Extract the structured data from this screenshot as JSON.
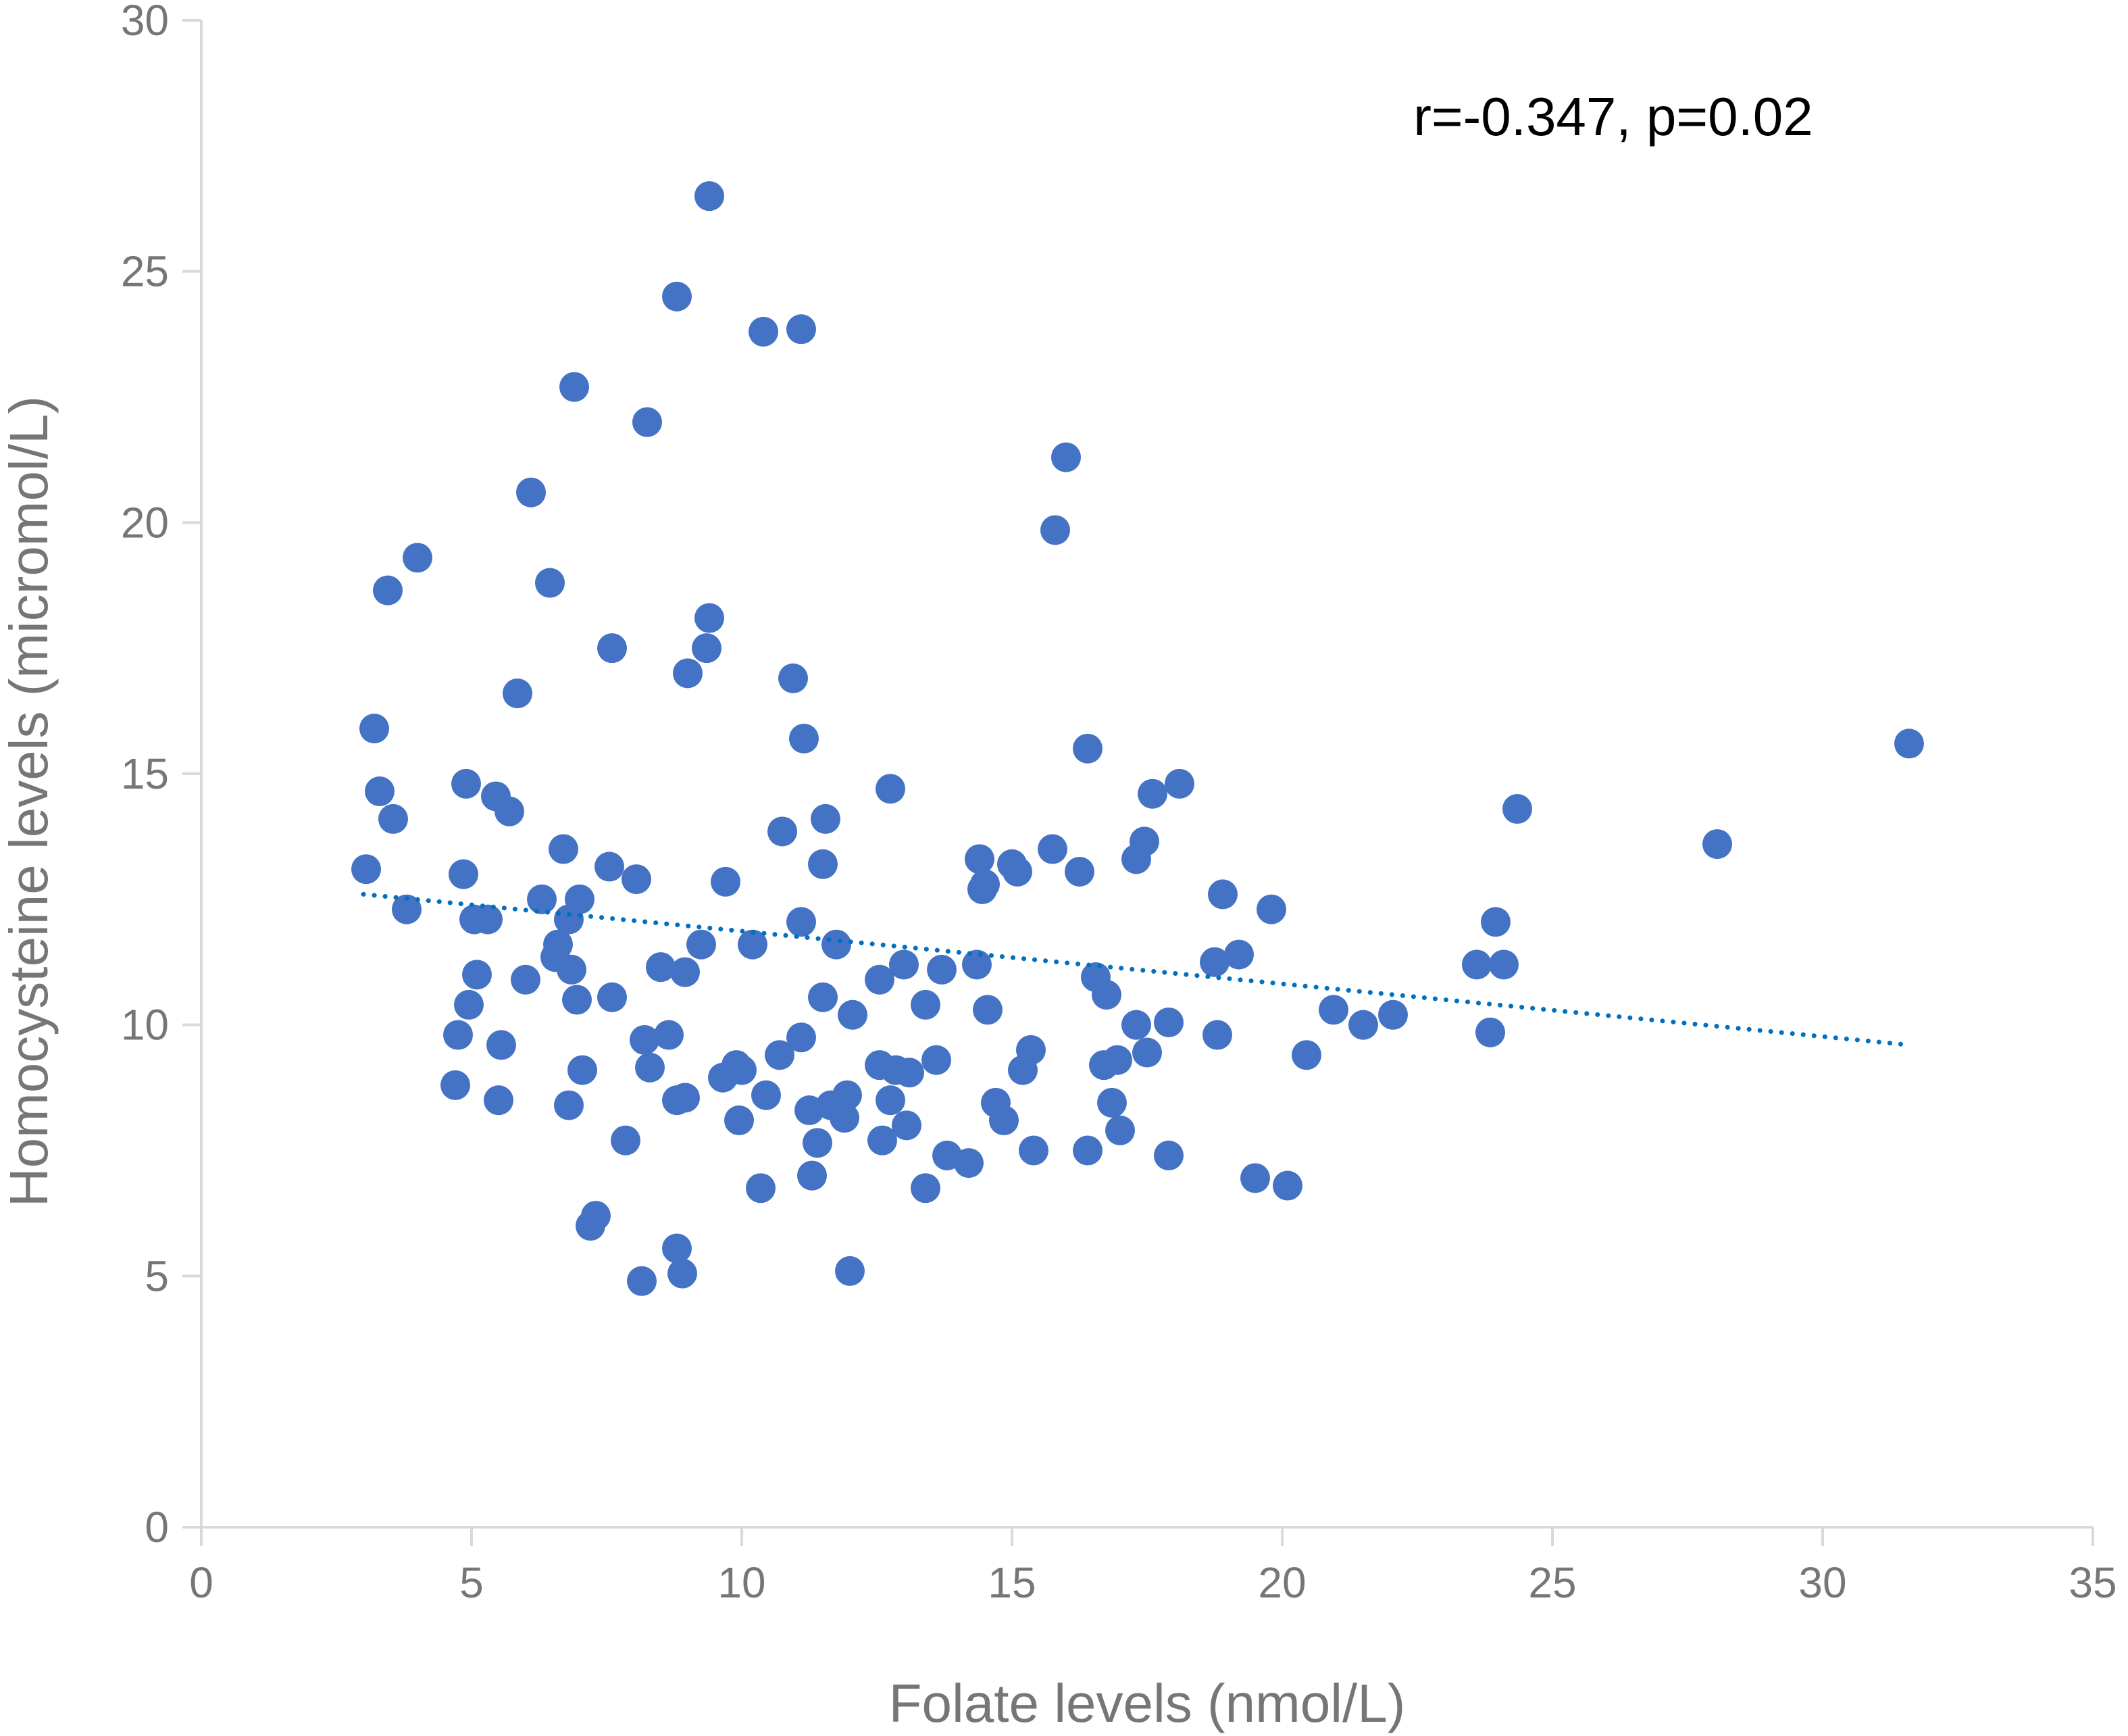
{
  "chart_data": {
    "type": "scatter",
    "xlabel": "Folate levels (nmol/L)",
    "ylabel": "Homocysteine levels (micromol/L)",
    "annotation": "r=-0.347, p=0.02",
    "xlim": [
      0,
      35
    ],
    "ylim": [
      0,
      30
    ],
    "x_ticks": [
      0,
      5,
      10,
      15,
      20,
      25,
      30,
      35
    ],
    "y_ticks": [
      0,
      5,
      10,
      15,
      20,
      25,
      30
    ],
    "grid": false,
    "legend": "none",
    "colors": {
      "points": "#4472C4",
      "trendline": "#0070C0",
      "axis": "#D9D9D9",
      "text": "#767676"
    },
    "trendline": {
      "style": "dotted",
      "x": [
        3.0,
        31.6
      ],
      "y": [
        12.6,
        9.6
      ]
    },
    "points": [
      {
        "x": 3.05,
        "y": 13.1
      },
      {
        "x": 3.2,
        "y": 15.9
      },
      {
        "x": 3.3,
        "y": 14.65
      },
      {
        "x": 3.45,
        "y": 18.65
      },
      {
        "x": 3.55,
        "y": 14.1
      },
      {
        "x": 3.8,
        "y": 12.3
      },
      {
        "x": 4.0,
        "y": 19.3
      },
      {
        "x": 4.7,
        "y": 8.8
      },
      {
        "x": 4.75,
        "y": 9.8
      },
      {
        "x": 4.85,
        "y": 13.0
      },
      {
        "x": 4.9,
        "y": 14.8
      },
      {
        "x": 4.95,
        "y": 10.4
      },
      {
        "x": 5.05,
        "y": 12.1
      },
      {
        "x": 5.1,
        "y": 11.0
      },
      {
        "x": 5.3,
        "y": 12.1
      },
      {
        "x": 5.45,
        "y": 14.55
      },
      {
        "x": 5.5,
        "y": 8.5
      },
      {
        "x": 5.55,
        "y": 9.6
      },
      {
        "x": 5.7,
        "y": 14.25
      },
      {
        "x": 5.85,
        "y": 16.6
      },
      {
        "x": 6.0,
        "y": 10.9
      },
      {
        "x": 6.1,
        "y": 20.6
      },
      {
        "x": 6.3,
        "y": 12.5
      },
      {
        "x": 6.45,
        "y": 18.8
      },
      {
        "x": 6.55,
        "y": 11.35
      },
      {
        "x": 6.6,
        "y": 11.6
      },
      {
        "x": 6.7,
        "y": 13.5
      },
      {
        "x": 6.8,
        "y": 8.4
      },
      {
        "x": 6.8,
        "y": 12.1
      },
      {
        "x": 6.85,
        "y": 11.1
      },
      {
        "x": 6.9,
        "y": 22.7
      },
      {
        "x": 6.95,
        "y": 10.5
      },
      {
        "x": 7.0,
        "y": 12.5
      },
      {
        "x": 7.05,
        "y": 9.1
      },
      {
        "x": 7.2,
        "y": 6.0
      },
      {
        "x": 7.3,
        "y": 6.2
      },
      {
        "x": 7.55,
        "y": 13.15
      },
      {
        "x": 7.6,
        "y": 10.55
      },
      {
        "x": 7.6,
        "y": 17.5
      },
      {
        "x": 7.85,
        "y": 7.7
      },
      {
        "x": 8.05,
        "y": 12.9
      },
      {
        "x": 8.15,
        "y": 4.9
      },
      {
        "x": 8.2,
        "y": 9.7
      },
      {
        "x": 8.25,
        "y": 22.0
      },
      {
        "x": 8.3,
        "y": 9.15
      },
      {
        "x": 8.5,
        "y": 11.15
      },
      {
        "x": 8.65,
        "y": 9.8
      },
      {
        "x": 8.8,
        "y": 8.5
      },
      {
        "x": 8.8,
        "y": 24.5
      },
      {
        "x": 8.8,
        "y": 5.55
      },
      {
        "x": 8.9,
        "y": 5.05
      },
      {
        "x": 8.95,
        "y": 8.55
      },
      {
        "x": 8.95,
        "y": 11.05
      },
      {
        "x": 9.0,
        "y": 17.0
      },
      {
        "x": 9.25,
        "y": 11.6
      },
      {
        "x": 9.35,
        "y": 17.5
      },
      {
        "x": 9.4,
        "y": 18.1
      },
      {
        "x": 9.4,
        "y": 26.5
      },
      {
        "x": 9.65,
        "y": 8.95
      },
      {
        "x": 9.7,
        "y": 12.85
      },
      {
        "x": 9.9,
        "y": 9.2
      },
      {
        "x": 9.95,
        "y": 8.1
      },
      {
        "x": 10.0,
        "y": 9.1
      },
      {
        "x": 10.2,
        "y": 11.6
      },
      {
        "x": 10.35,
        "y": 6.75
      },
      {
        "x": 10.4,
        "y": 23.8
      },
      {
        "x": 10.45,
        "y": 8.6
      },
      {
        "x": 10.7,
        "y": 9.4
      },
      {
        "x": 10.75,
        "y": 13.85
      },
      {
        "x": 10.95,
        "y": 16.9
      },
      {
        "x": 11.1,
        "y": 9.75
      },
      {
        "x": 11.1,
        "y": 12.05
      },
      {
        "x": 11.1,
        "y": 23.85
      },
      {
        "x": 11.15,
        "y": 15.7
      },
      {
        "x": 11.25,
        "y": 8.3
      },
      {
        "x": 11.3,
        "y": 7.0
      },
      {
        "x": 11.4,
        "y": 7.65
      },
      {
        "x": 11.5,
        "y": 10.55
      },
      {
        "x": 11.5,
        "y": 13.2
      },
      {
        "x": 11.55,
        "y": 14.1
      },
      {
        "x": 11.65,
        "y": 8.4
      },
      {
        "x": 11.75,
        "y": 11.6
      },
      {
        "x": 11.9,
        "y": 8.15
      },
      {
        "x": 11.95,
        "y": 8.6
      },
      {
        "x": 12.0,
        "y": 5.1
      },
      {
        "x": 12.05,
        "y": 10.2
      },
      {
        "x": 12.55,
        "y": 9.2
      },
      {
        "x": 12.55,
        "y": 10.9
      },
      {
        "x": 12.6,
        "y": 7.7
      },
      {
        "x": 12.75,
        "y": 8.5
      },
      {
        "x": 12.75,
        "y": 14.7
      },
      {
        "x": 12.85,
        "y": 9.1
      },
      {
        "x": 13.0,
        "y": 11.2
      },
      {
        "x": 13.05,
        "y": 8.0
      },
      {
        "x": 13.1,
        "y": 9.05
      },
      {
        "x": 13.4,
        "y": 6.75
      },
      {
        "x": 13.4,
        "y": 10.4
      },
      {
        "x": 13.6,
        "y": 9.3
      },
      {
        "x": 13.7,
        "y": 11.1
      },
      {
        "x": 13.8,
        "y": 7.4
      },
      {
        "x": 14.2,
        "y": 7.25
      },
      {
        "x": 14.35,
        "y": 11.2
      },
      {
        "x": 14.4,
        "y": 13.3
      },
      {
        "x": 14.45,
        "y": 12.7
      },
      {
        "x": 14.5,
        "y": 12.8
      },
      {
        "x": 14.55,
        "y": 10.3
      },
      {
        "x": 14.7,
        "y": 8.45
      },
      {
        "x": 14.85,
        "y": 8.1
      },
      {
        "x": 15.0,
        "y": 13.2
      },
      {
        "x": 15.1,
        "y": 13.05
      },
      {
        "x": 15.2,
        "y": 9.1
      },
      {
        "x": 15.35,
        "y": 9.5
      },
      {
        "x": 15.4,
        "y": 7.5
      },
      {
        "x": 15.75,
        "y": 13.5
      },
      {
        "x": 15.8,
        "y": 19.85
      },
      {
        "x": 16.0,
        "y": 21.3
      },
      {
        "x": 16.25,
        "y": 13.05
      },
      {
        "x": 16.4,
        "y": 7.5
      },
      {
        "x": 16.4,
        "y": 15.5
      },
      {
        "x": 16.55,
        "y": 10.95
      },
      {
        "x": 16.7,
        "y": 9.2
      },
      {
        "x": 16.75,
        "y": 10.6
      },
      {
        "x": 16.85,
        "y": 8.45
      },
      {
        "x": 16.95,
        "y": 9.3
      },
      {
        "x": 17.0,
        "y": 7.9
      },
      {
        "x": 17.3,
        "y": 10.0
      },
      {
        "x": 17.3,
        "y": 13.3
      },
      {
        "x": 17.45,
        "y": 13.65
      },
      {
        "x": 17.5,
        "y": 9.45
      },
      {
        "x": 17.6,
        "y": 14.6
      },
      {
        "x": 17.9,
        "y": 7.4
      },
      {
        "x": 17.9,
        "y": 10.05
      },
      {
        "x": 18.1,
        "y": 14.8
      },
      {
        "x": 18.75,
        "y": 11.25
      },
      {
        "x": 18.8,
        "y": 9.8
      },
      {
        "x": 18.9,
        "y": 12.6
      },
      {
        "x": 19.2,
        "y": 11.4
      },
      {
        "x": 19.5,
        "y": 6.95
      },
      {
        "x": 19.8,
        "y": 12.3
      },
      {
        "x": 20.1,
        "y": 6.8
      },
      {
        "x": 20.45,
        "y": 9.4
      },
      {
        "x": 20.95,
        "y": 10.3
      },
      {
        "x": 21.5,
        "y": 10.0
      },
      {
        "x": 22.05,
        "y": 10.2
      },
      {
        "x": 23.6,
        "y": 11.2
      },
      {
        "x": 23.85,
        "y": 9.85
      },
      {
        "x": 23.95,
        "y": 12.05
      },
      {
        "x": 24.1,
        "y": 11.2
      },
      {
        "x": 24.35,
        "y": 14.3
      },
      {
        "x": 28.05,
        "y": 13.6
      },
      {
        "x": 31.6,
        "y": 15.6
      }
    ]
  }
}
